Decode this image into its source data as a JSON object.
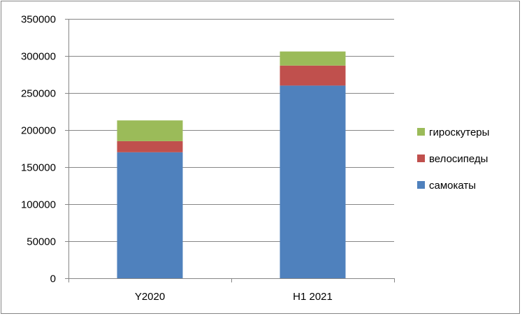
{
  "chart_data": {
    "type": "bar",
    "stacked": true,
    "categories": [
      "Y2020",
      "H1 2021"
    ],
    "series": [
      {
        "name": "самокаты",
        "values": [
          170000,
          260000
        ],
        "color": "#4F81BD"
      },
      {
        "name": "велосипеды",
        "values": [
          15000,
          27000
        ],
        "color": "#C0504D"
      },
      {
        "name": "гироскутеры",
        "values": [
          28000,
          19000
        ],
        "color": "#9BBB59"
      }
    ],
    "ylim": [
      0,
      350000
    ],
    "yticks": [
      0,
      50000,
      100000,
      150000,
      200000,
      250000,
      300000,
      350000
    ],
    "grid": true,
    "legend_position": "right",
    "legend_order": [
      "гироскутеры",
      "велосипеды",
      "самокаты"
    ]
  }
}
